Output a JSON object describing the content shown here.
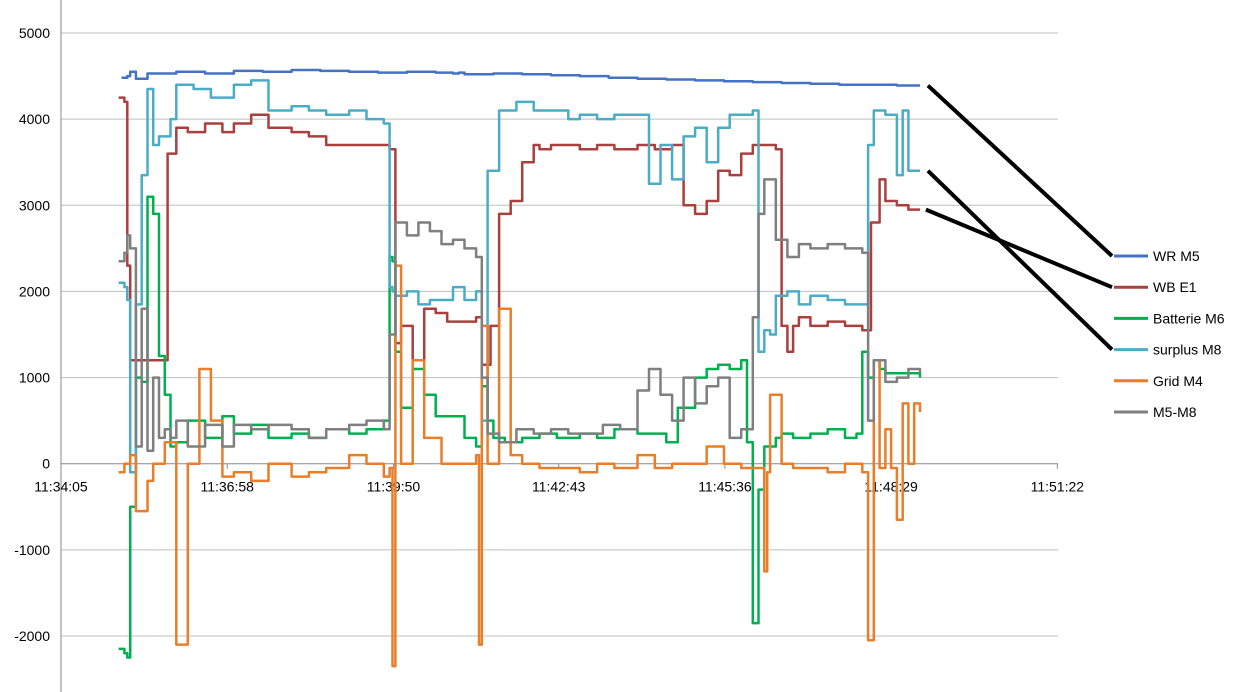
{
  "chart_data": {
    "type": "line",
    "title": "",
    "xlabel": "",
    "ylabel": "",
    "ylim": [
      -2500,
      5000
    ],
    "yticks": [
      -2000,
      -1000,
      0,
      1000,
      2000,
      3000,
      4000,
      5000
    ],
    "ytick_labels": [
      "-2000",
      "-1000",
      "0",
      "1000",
      "2000",
      "3000",
      "4000",
      "5000"
    ],
    "xticks_minutes": [
      0,
      2.883,
      5.767,
      8.633,
      11.517,
      14.4,
      17.283
    ],
    "xtick_labels": [
      "11:34:05",
      "11:36:58",
      "11:39:50",
      "11:42:43",
      "11:45:36",
      "11:48:29",
      "11:51:22"
    ],
    "grid": "horizontal",
    "legend_position": "right",
    "x_unit": "minutes after 11:34:05",
    "series": [
      {
        "name": "WR M5",
        "color": "#4472C4",
        "x": [
          1.05,
          1.15,
          1.2,
          1.3,
          1.5,
          2.0,
          2.5,
          3.0,
          3.5,
          4.0,
          4.5,
          5.0,
          5.5,
          6.0,
          6.5,
          6.8,
          6.9,
          7.0,
          7.5,
          8.0,
          8.5,
          9.0,
          9.5,
          10.0,
          10.5,
          11.0,
          11.5,
          12.0,
          12.5,
          12.8,
          13.0,
          13.5,
          14.0,
          14.5,
          14.9
        ],
        "y": [
          4480,
          4500,
          4550,
          4470,
          4530,
          4550,
          4530,
          4560,
          4550,
          4570,
          4560,
          4550,
          4540,
          4550,
          4540,
          4530,
          4540,
          4520,
          4530,
          4520,
          4510,
          4500,
          4480,
          4470,
          4460,
          4450,
          4440,
          4430,
          4420,
          4420,
          4410,
          4400,
          4400,
          4390,
          4390
        ]
      },
      {
        "name": "WB E1",
        "color": "#A9403E",
        "x": [
          1.0,
          1.1,
          1.15,
          1.2,
          1.3,
          1.6,
          1.85,
          2.0,
          2.2,
          2.5,
          2.8,
          3.0,
          3.3,
          3.6,
          4.0,
          4.3,
          4.6,
          5.0,
          5.3,
          5.6,
          5.7,
          5.8,
          5.9,
          6.1,
          6.3,
          6.5,
          6.7,
          7.0,
          7.2,
          7.3,
          7.45,
          7.6,
          7.8,
          8.0,
          8.2,
          8.3,
          8.5,
          8.8,
          9.0,
          9.3,
          9.6,
          10.0,
          10.3,
          10.6,
          10.8,
          11.0,
          11.2,
          11.4,
          11.6,
          11.8,
          12.0,
          12.2,
          12.4,
          12.5,
          12.6,
          12.7,
          12.8,
          13.0,
          13.3,
          13.6,
          13.8,
          13.9,
          14.05,
          14.2,
          14.3,
          14.5,
          14.7,
          14.9
        ],
        "y": [
          4250,
          4200,
          2300,
          1200,
          1200,
          1200,
          3600,
          3900,
          3850,
          3950,
          3850,
          3950,
          4050,
          3900,
          3850,
          3800,
          3700,
          3700,
          3700,
          3700,
          3650,
          1400,
          1600,
          1200,
          1800,
          1750,
          1650,
          1650,
          1700,
          1150,
          1600,
          2900,
          3050,
          3500,
          3700,
          3650,
          3700,
          3700,
          3650,
          3700,
          3650,
          3700,
          3650,
          3700,
          3000,
          2900,
          3050,
          3400,
          3350,
          3600,
          3700,
          3700,
          3650,
          1600,
          1300,
          1600,
          1700,
          1600,
          1650,
          1600,
          1600,
          1550,
          2800,
          3300,
          3050,
          3000,
          2950,
          2950
        ]
      },
      {
        "name": "Batterie M6",
        "color": "#00B050",
        "x": [
          1.0,
          1.1,
          1.15,
          1.2,
          1.3,
          1.4,
          1.5,
          1.6,
          1.7,
          1.8,
          1.9,
          2.0,
          2.2,
          2.5,
          2.8,
          3.0,
          3.3,
          3.6,
          4.0,
          4.3,
          4.6,
          5.0,
          5.3,
          5.6,
          5.7,
          5.75,
          5.8,
          5.9,
          6.1,
          6.3,
          6.5,
          6.7,
          7.0,
          7.2,
          7.3,
          7.4,
          7.5,
          7.7,
          8.0,
          8.3,
          8.6,
          9.0,
          9.3,
          9.6,
          10.0,
          10.3,
          10.5,
          10.7,
          11.0,
          11.2,
          11.4,
          11.6,
          11.8,
          11.9,
          12.0,
          12.1,
          12.2,
          12.4,
          12.5,
          12.7,
          13.0,
          13.3,
          13.6,
          13.8,
          13.9,
          14.0,
          14.1,
          14.2,
          14.3,
          14.5,
          14.7,
          14.9
        ],
        "y": [
          -2150,
          -2200,
          -2250,
          -500,
          1000,
          950,
          3100,
          2900,
          1250,
          800,
          200,
          250,
          500,
          300,
          550,
          350,
          450,
          300,
          350,
          300,
          400,
          350,
          400,
          500,
          2400,
          2350,
          1300,
          650,
          1100,
          800,
          550,
          550,
          300,
          200,
          900,
          500,
          300,
          250,
          300,
          350,
          300,
          350,
          300,
          400,
          350,
          350,
          250,
          650,
          1000,
          1100,
          1150,
          1100,
          1200,
          250,
          -1850,
          -300,
          200,
          300,
          350,
          300,
          350,
          400,
          300,
          350,
          1300,
          1000,
          1200,
          1100,
          1050,
          1050,
          1050,
          1000
        ]
      },
      {
        "name": "surplus M8",
        "color": "#4BACC6",
        "x": [
          1.0,
          1.1,
          1.15,
          1.2,
          1.3,
          1.4,
          1.5,
          1.6,
          1.7,
          1.9,
          2.0,
          2.3,
          2.6,
          3.0,
          3.3,
          3.6,
          4.0,
          4.3,
          4.6,
          5.0,
          5.3,
          5.6,
          5.7,
          5.75,
          5.8,
          6.0,
          6.2,
          6.4,
          6.6,
          6.8,
          7.0,
          7.2,
          7.3,
          7.4,
          7.6,
          7.9,
          8.2,
          8.5,
          8.8,
          9.0,
          9.3,
          9.6,
          10.0,
          10.2,
          10.4,
          10.6,
          10.8,
          11.0,
          11.2,
          11.4,
          11.6,
          11.8,
          12.0,
          12.1,
          12.2,
          12.3,
          12.4,
          12.6,
          12.8,
          13.0,
          13.3,
          13.6,
          13.9,
          14.0,
          14.1,
          14.3,
          14.5,
          14.6,
          14.7,
          14.9
        ],
        "y": [
          2100,
          2050,
          1900,
          -100,
          1850,
          3350,
          4350,
          3700,
          3800,
          4000,
          4400,
          4350,
          4250,
          4400,
          4450,
          4100,
          4150,
          4100,
          4050,
          4100,
          4000,
          3950,
          2050,
          2000,
          1950,
          2000,
          1850,
          1900,
          1900,
          2050,
          1900,
          2000,
          500,
          3400,
          4100,
          4200,
          4100,
          4100,
          4000,
          4050,
          4000,
          4050,
          4050,
          3250,
          3700,
          3300,
          3800,
          3900,
          3500,
          3900,
          4050,
          4050,
          4100,
          1300,
          1550,
          1500,
          1950,
          2000,
          1850,
          1950,
          1900,
          1850,
          1850,
          3700,
          4100,
          4050,
          3350,
          4100,
          3400,
          3400
        ]
      },
      {
        "name": "Grid M4",
        "color": "#E97E2A",
        "x": [
          1.0,
          1.1,
          1.2,
          1.3,
          1.5,
          1.6,
          1.8,
          2.0,
          2.2,
          2.4,
          2.6,
          2.8,
          3.0,
          3.3,
          3.6,
          4.0,
          4.3,
          4.6,
          5.0,
          5.3,
          5.6,
          5.7,
          5.75,
          5.8,
          5.9,
          6.1,
          6.3,
          6.6,
          7.0,
          7.2,
          7.25,
          7.3,
          7.4,
          7.6,
          7.8,
          8.0,
          8.3,
          8.6,
          9.0,
          9.3,
          9.6,
          10.0,
          10.3,
          10.6,
          10.9,
          11.2,
          11.5,
          11.8,
          12.0,
          12.2,
          12.25,
          12.3,
          12.5,
          12.7,
          13.0,
          13.3,
          13.6,
          13.9,
          14.0,
          14.1,
          14.2,
          14.3,
          14.4,
          14.5,
          14.6,
          14.7,
          14.8,
          14.9
        ],
        "y": [
          -100,
          0,
          100,
          -550,
          -200,
          0,
          250,
          -2100,
          0,
          1100,
          500,
          -150,
          -100,
          -200,
          0,
          -150,
          -100,
          -50,
          100,
          0,
          -150,
          -50,
          -2350,
          2300,
          0,
          1200,
          300,
          0,
          0,
          100,
          -2100,
          1600,
          0,
          1800,
          100,
          0,
          -50,
          -50,
          -100,
          0,
          -50,
          100,
          -50,
          0,
          0,
          200,
          0,
          -50,
          -50,
          -1250,
          -100,
          800,
          0,
          -50,
          -50,
          -100,
          0,
          -100,
          -2050,
          1200,
          -50,
          400,
          -50,
          -650,
          700,
          0,
          700,
          600
        ]
      },
      {
        "name": "M5-M8",
        "color": "#7F7F7F",
        "x": [
          1.0,
          1.1,
          1.15,
          1.2,
          1.3,
          1.4,
          1.5,
          1.6,
          1.7,
          1.8,
          1.9,
          2.0,
          2.2,
          2.5,
          2.8,
          3.0,
          3.3,
          3.6,
          4.0,
          4.3,
          4.6,
          5.0,
          5.3,
          5.6,
          5.7,
          5.8,
          6.0,
          6.2,
          6.4,
          6.6,
          6.8,
          7.0,
          7.2,
          7.3,
          7.4,
          7.6,
          7.9,
          8.2,
          8.5,
          8.8,
          9.1,
          9.4,
          9.7,
          10.0,
          10.2,
          10.4,
          10.6,
          10.8,
          11.0,
          11.2,
          11.4,
          11.6,
          11.8,
          12.0,
          12.1,
          12.2,
          12.4,
          12.6,
          12.8,
          13.0,
          13.3,
          13.6,
          13.9,
          14.0,
          14.1,
          14.3,
          14.5,
          14.7,
          14.9
        ],
        "y": [
          2350,
          2450,
          2650,
          2500,
          200,
          1800,
          150,
          1000,
          300,
          400,
          300,
          500,
          200,
          450,
          200,
          450,
          400,
          450,
          400,
          300,
          400,
          450,
          500,
          400,
          1500,
          2800,
          2650,
          2800,
          2700,
          2550,
          2600,
          2500,
          2400,
          1000,
          350,
          250,
          400,
          350,
          400,
          350,
          350,
          450,
          400,
          850,
          1100,
          800,
          500,
          1000,
          700,
          900,
          1000,
          300,
          400,
          1700,
          2900,
          3300,
          2600,
          2400,
          2550,
          2500,
          2550,
          2500,
          2450,
          500,
          1200,
          950,
          1000,
          1100,
          1050
        ]
      }
    ]
  }
}
